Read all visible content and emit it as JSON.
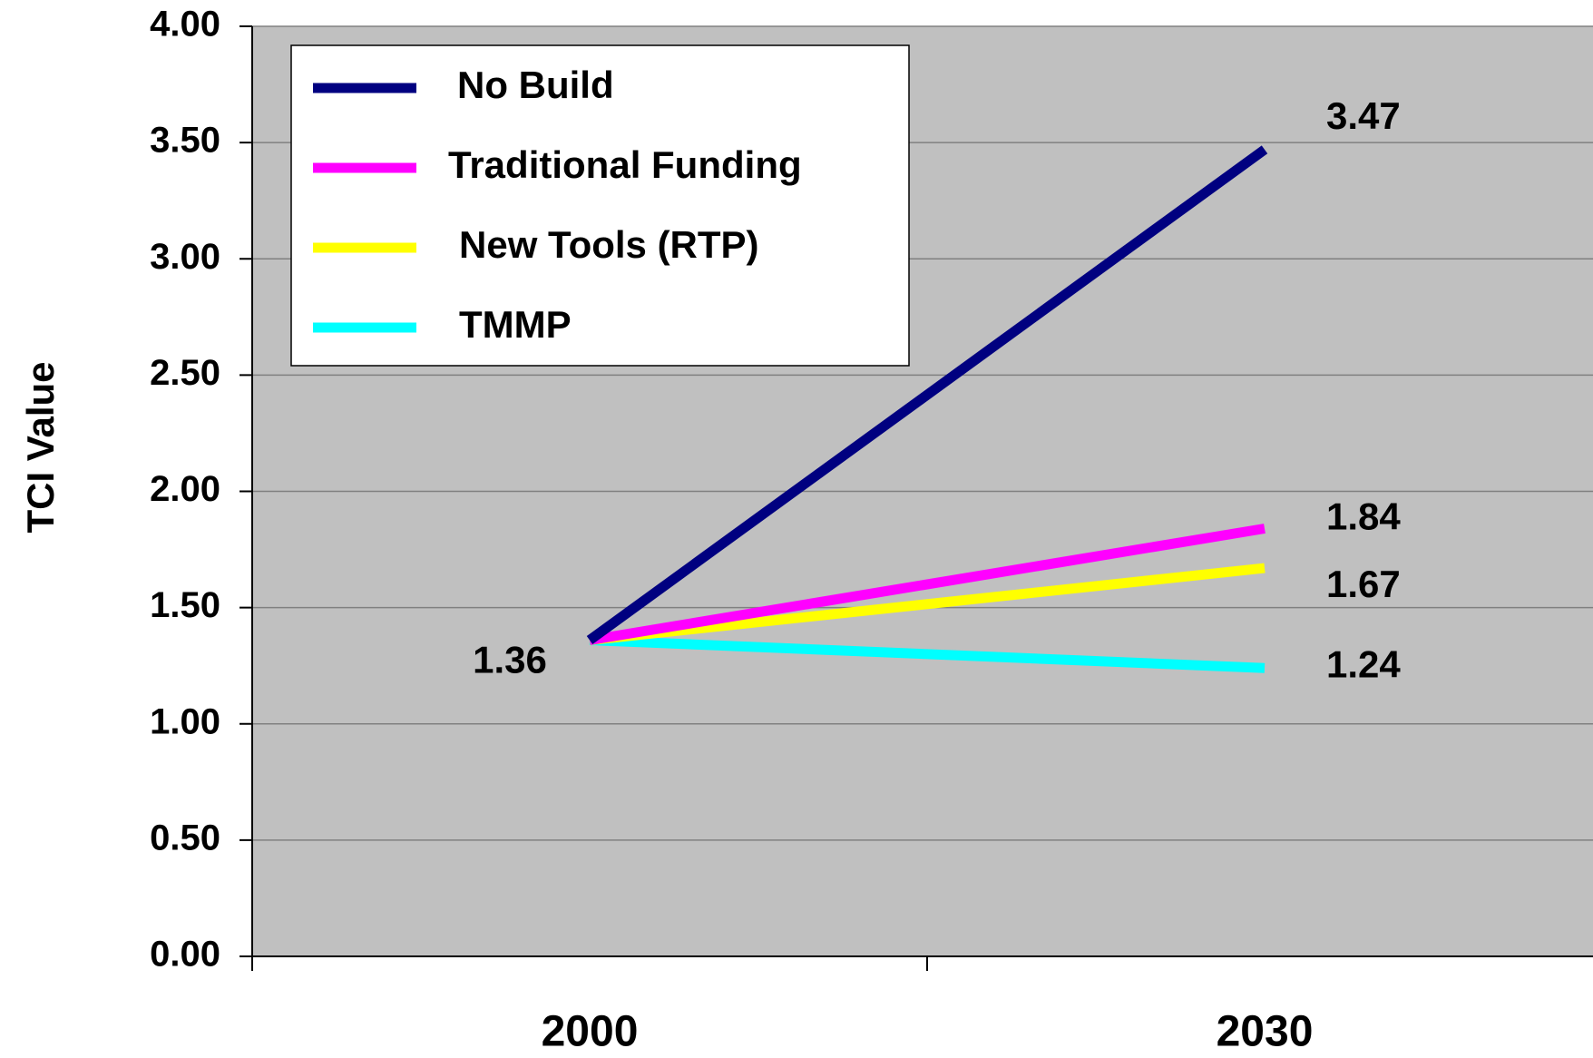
{
  "chart_data": {
    "type": "line",
    "y_label": "TCI Value",
    "categories": [
      "2000",
      "2030"
    ],
    "series": [
      {
        "name": "No Build",
        "color": "#000080",
        "values": [
          1.36,
          3.47
        ]
      },
      {
        "name": "Traditional Funding",
        "color": "#ff00ff",
        "values": [
          1.36,
          1.84
        ]
      },
      {
        "name": "New Tools (RTP)",
        "color": "#ffff00",
        "values": [
          1.36,
          1.67
        ]
      },
      {
        "name": "TMMP",
        "color": "#00ffff",
        "values": [
          1.36,
          1.24
        ]
      }
    ],
    "ylim": [
      0,
      4
    ],
    "yticks": [
      {
        "value": 0,
        "label": "0.00"
      },
      {
        "value": 0.5,
        "label": "0.50"
      },
      {
        "value": 1,
        "label": "1.00"
      },
      {
        "value": 1.5,
        "label": "1.50"
      },
      {
        "value": 2,
        "label": "2.00"
      },
      {
        "value": 2.5,
        "label": "2.50"
      },
      {
        "value": 3,
        "label": "3.00"
      },
      {
        "value": 3.5,
        "label": "3.50"
      },
      {
        "value": 4,
        "label": "4.00"
      }
    ],
    "grid": true,
    "legend": "upper left"
  }
}
